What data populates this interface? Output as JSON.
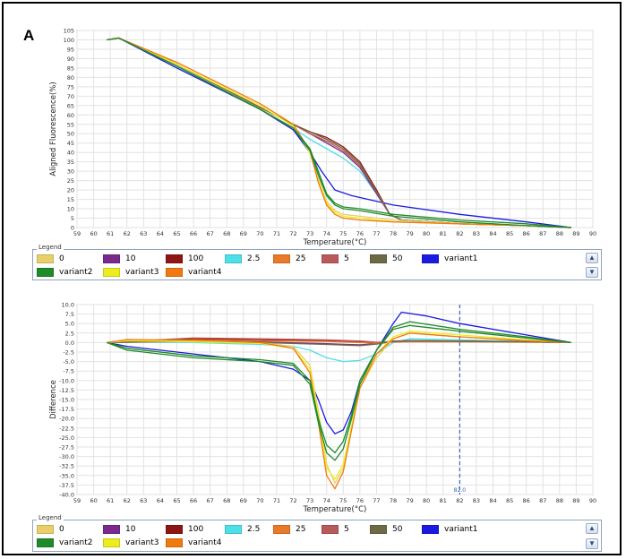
{
  "panel_label": "A",
  "legend_title": "Legend",
  "legend_items": [
    {
      "label": "0",
      "color": "#e8cf6a"
    },
    {
      "label": "10",
      "color": "#7a2a8c"
    },
    {
      "label": "100",
      "color": "#8e1515"
    },
    {
      "label": "2.5",
      "color": "#4ee0e8"
    },
    {
      "label": "25",
      "color": "#e87a2a"
    },
    {
      "label": "5",
      "color": "#b85a5a"
    },
    {
      "label": "50",
      "color": "#6e6a46"
    },
    {
      "label": "variant1",
      "color": "#1a1ae0"
    },
    {
      "label": "variant2",
      "color": "#1f8a2a"
    },
    {
      "label": "variant3",
      "color": "#ecec1e"
    },
    {
      "label": "variant4",
      "color": "#f07a10"
    }
  ],
  "chart_data": [
    {
      "type": "line",
      "title": "",
      "xlabel": "Temperature(°C)",
      "ylabel": "Aligned Fluorescence(%)",
      "xlim": [
        59,
        90
      ],
      "ylim": [
        0,
        105
      ],
      "x_ticks": [
        "59",
        "60",
        "61",
        "62",
        "63",
        "64",
        "65",
        "66",
        "67",
        "68",
        "69",
        "70",
        "71",
        "72",
        "73",
        "74",
        "75",
        "76",
        "77",
        "78",
        "79",
        "80",
        "81",
        "82",
        "83",
        "84",
        "85",
        "86",
        "87",
        "88",
        "89",
        "90"
      ],
      "y_ticks": [
        "0",
        "5",
        "10",
        "15",
        "20",
        "25",
        "30",
        "35",
        "40",
        "45",
        "50",
        "55",
        "60",
        "65",
        "70",
        "75",
        "80",
        "85",
        "90",
        "95",
        "100",
        "105"
      ],
      "grid": true,
      "legend": "below",
      "series": [
        {
          "group": "0",
          "x": [
            60.8,
            61.5,
            65,
            70,
            72,
            73,
            73.5,
            74,
            74.5,
            75,
            76,
            78,
            82,
            86,
            88.7
          ],
          "y": [
            100,
            101,
            87,
            65,
            54,
            40,
            26,
            14,
            9,
            7,
            6,
            4,
            2,
            1,
            0
          ]
        },
        {
          "group": "10",
          "x": [
            60.8,
            61.5,
            65,
            70,
            72,
            73,
            74,
            75,
            76,
            77,
            77.8,
            78.5,
            82,
            86,
            88.7
          ],
          "y": [
            100,
            101,
            87,
            64,
            55,
            50,
            45,
            40,
            32,
            18,
            7,
            4,
            2,
            1,
            0
          ]
        },
        {
          "group": "100",
          "x": [
            60.8,
            61.5,
            65,
            70,
            72,
            73,
            74,
            75,
            76,
            77,
            77.8,
            78.5,
            82,
            86,
            88.7
          ],
          "y": [
            100,
            101,
            87,
            64,
            55,
            51,
            48,
            43,
            35,
            20,
            7,
            4,
            2,
            1,
            0
          ]
        },
        {
          "group": "2.5",
          "x": [
            60.8,
            61.5,
            65,
            70,
            72,
            73,
            74,
            75,
            76,
            77,
            77.8,
            78.5,
            82,
            86,
            88.7
          ],
          "y": [
            100,
            101,
            86,
            63,
            53,
            47,
            42,
            37,
            30,
            18,
            7,
            4,
            2,
            1,
            0
          ]
        },
        {
          "group": "25",
          "x": [
            60.8,
            61.5,
            65,
            70,
            72,
            73,
            74,
            75,
            76,
            77,
            77.8,
            78.5,
            82,
            86,
            88.7
          ],
          "y": [
            100,
            101,
            87,
            64,
            55,
            51,
            47,
            42,
            34,
            19,
            7,
            4,
            2,
            1,
            0
          ]
        },
        {
          "group": "5",
          "x": [
            60.8,
            61.5,
            65,
            70,
            72,
            73,
            74,
            75,
            76,
            77,
            77.8,
            78.5,
            82,
            86,
            88.7
          ],
          "y": [
            100,
            101,
            87,
            64,
            55,
            50,
            46,
            41,
            33,
            19,
            7,
            4,
            2,
            1,
            0
          ]
        },
        {
          "group": "50",
          "x": [
            60.8,
            61.5,
            65,
            70,
            72,
            73,
            74,
            75,
            76,
            77,
            77.8,
            78.5,
            82,
            86,
            88.7
          ],
          "y": [
            100,
            101,
            87,
            64,
            55,
            51,
            47,
            42,
            34,
            19,
            7,
            4,
            2,
            1,
            0
          ]
        },
        {
          "group": "variant1",
          "x": [
            60.8,
            61.5,
            65,
            70,
            72,
            73,
            73.7,
            74.5,
            75.5,
            78,
            82,
            86,
            88.7
          ],
          "y": [
            100,
            101,
            85,
            63,
            52,
            40,
            30,
            20,
            17,
            12,
            7,
            3,
            0
          ]
        },
        {
          "group": "variant2",
          "x": [
            60.8,
            61.5,
            65,
            70,
            72,
            73,
            73.5,
            74,
            74.5,
            75,
            76,
            78,
            82,
            86,
            88.7
          ],
          "y": [
            100,
            101,
            86,
            63,
            53,
            42,
            30,
            18,
            13,
            11,
            10,
            7,
            4,
            2,
            0
          ]
        },
        {
          "group": "variant2",
          "x": [
            60.8,
            61.5,
            65,
            70,
            72,
            73,
            73.5,
            74,
            74.5,
            75,
            76,
            78,
            82,
            86,
            88.7
          ],
          "y": [
            100,
            101,
            86,
            63,
            53,
            41,
            28,
            17,
            12,
            10,
            9,
            6,
            3,
            1,
            0
          ]
        },
        {
          "group": "variant3",
          "x": [
            60.8,
            61.5,
            65,
            70,
            72,
            73,
            73.5,
            74,
            74.5,
            75,
            76,
            78,
            82,
            86,
            88.7
          ],
          "y": [
            100,
            101,
            87,
            65,
            54,
            40,
            25,
            13,
            8,
            6,
            5,
            3,
            2,
            1,
            0
          ]
        },
        {
          "group": "variant4",
          "x": [
            60.8,
            61.5,
            65,
            70,
            72,
            73,
            73.5,
            74,
            74.5,
            75,
            76,
            78,
            82,
            86,
            88.7
          ],
          "y": [
            100,
            101,
            88,
            66,
            55,
            41,
            24,
            12,
            7,
            5,
            4,
            3,
            2,
            1,
            0
          ]
        }
      ]
    },
    {
      "type": "line",
      "title": "",
      "xlabel": "Temperature(°C)",
      "ylabel": "Difference",
      "xlim": [
        59,
        90
      ],
      "ylim": [
        -40,
        10
      ],
      "x_ticks": [
        "59",
        "60",
        "61",
        "62",
        "63",
        "64",
        "65",
        "66",
        "67",
        "68",
        "69",
        "70",
        "71",
        "72",
        "73",
        "74",
        "75",
        "76",
        "77",
        "78",
        "79",
        "80",
        "81",
        "82",
        "83",
        "84",
        "85",
        "86",
        "87",
        "88",
        "89",
        "90"
      ],
      "y_ticks": [
        "10.0",
        "7.5",
        "5.0",
        "2.5",
        "0.0",
        "-2.5",
        "-5.0",
        "-7.5",
        "-10.0",
        "-12.5",
        "-15.0",
        "-17.5",
        "-20.0",
        "-22.5",
        "-25.0",
        "-27.5",
        "-30.0",
        "-32.5",
        "-35.0",
        "-37.5",
        "-40.0"
      ],
      "grid": true,
      "legend": "below",
      "marker_x": 82.0,
      "marker_label": "82.0",
      "series": [
        {
          "group": "0",
          "x": [
            60.8,
            62,
            66,
            70,
            72,
            73,
            73.5,
            74,
            74.5,
            75,
            75.5,
            76,
            77,
            78,
            79,
            82,
            86,
            88.7
          ],
          "y": [
            0,
            0.5,
            0.5,
            0,
            -1,
            -6,
            -18,
            -32,
            -37,
            -33,
            -22,
            -12,
            -4,
            1,
            2.5,
            1.5,
            0.5,
            0
          ]
        },
        {
          "group": "10",
          "x": [
            60.8,
            66,
            70,
            74,
            76,
            77,
            78,
            79,
            82,
            86,
            88.7
          ],
          "y": [
            0,
            0.5,
            0.2,
            -0.3,
            -0.6,
            -0.3,
            0.4,
            0.5,
            0.4,
            0.2,
            0
          ]
        },
        {
          "group": "100",
          "x": [
            60.8,
            66,
            70,
            74,
            76,
            77,
            78,
            79,
            82,
            86,
            88.7
          ],
          "y": [
            0,
            1,
            0.7,
            0.5,
            0.2,
            0,
            0.2,
            0.3,
            0.3,
            0.2,
            0
          ]
        },
        {
          "group": "2.5",
          "x": [
            60.8,
            62,
            66,
            70,
            72,
            73,
            74,
            75,
            76,
            77,
            78,
            79,
            82,
            86,
            88.7
          ],
          "y": [
            0,
            0.2,
            0,
            -0.5,
            -1,
            -2,
            -4,
            -5,
            -4.7,
            -3,
            0,
            1,
            0.7,
            0.3,
            0
          ]
        },
        {
          "group": "25",
          "x": [
            60.8,
            66,
            70,
            74,
            76,
            77,
            78,
            79,
            82,
            86,
            88.7
          ],
          "y": [
            0,
            0.7,
            0.5,
            0.3,
            0,
            -0.2,
            0.1,
            0.2,
            0.2,
            0.1,
            0
          ]
        },
        {
          "group": "5",
          "x": [
            60.8,
            66,
            70,
            74,
            76,
            77,
            78,
            79,
            82,
            86,
            88.7
          ],
          "y": [
            0,
            1.2,
            1,
            0.7,
            0.4,
            0.1,
            0.3,
            0.4,
            0.3,
            0.2,
            0
          ]
        },
        {
          "group": "50",
          "x": [
            60.8,
            66,
            70,
            74,
            76,
            77,
            78,
            79,
            82,
            86,
            88.7
          ],
          "y": [
            0,
            0.3,
            0,
            -0.5,
            -0.8,
            -0.4,
            0.3,
            0.5,
            0.4,
            0.2,
            0
          ]
        },
        {
          "group": "variant1",
          "x": [
            60.8,
            62,
            66,
            70,
            72,
            73,
            73.5,
            74,
            74.5,
            75,
            75.5,
            76,
            77,
            78,
            78.5,
            80,
            82,
            86,
            88.7
          ],
          "y": [
            0,
            -1,
            -3,
            -5,
            -7,
            -10,
            -15,
            -21,
            -24,
            -23,
            -18,
            -10,
            -2,
            5,
            8,
            7,
            5,
            2,
            0
          ]
        },
        {
          "group": "variant2",
          "x": [
            60.8,
            62,
            66,
            70,
            72,
            73,
            73.5,
            74,
            74.5,
            75,
            75.5,
            76,
            77,
            78,
            79,
            82,
            86,
            88.7
          ],
          "y": [
            0,
            -2,
            -4,
            -5,
            -6,
            -11,
            -21,
            -29,
            -31,
            -28,
            -20,
            -11,
            -2,
            4,
            5.5,
            3.5,
            1.5,
            0
          ]
        },
        {
          "group": "variant2",
          "x": [
            60.8,
            62,
            66,
            70,
            72,
            73,
            73.5,
            74,
            74.5,
            75,
            75.5,
            76,
            77,
            78,
            79,
            82,
            86,
            88.7
          ],
          "y": [
            0,
            -1.5,
            -3.5,
            -4.5,
            -5.5,
            -10,
            -20,
            -27,
            -29,
            -26,
            -19,
            -10,
            -2,
            3.5,
            4.5,
            3,
            1.2,
            0
          ]
        },
        {
          "group": "variant3",
          "x": [
            60.8,
            62,
            66,
            70,
            72,
            73,
            73.5,
            74,
            74.5,
            75,
            75.5,
            76,
            77,
            78,
            79,
            82,
            86,
            88.7
          ],
          "y": [
            0,
            0.5,
            0.2,
            -0.2,
            -1.5,
            -7,
            -19,
            -33,
            -36,
            -32,
            -22,
            -11,
            -3,
            1.5,
            3,
            2,
            0.7,
            0
          ]
        },
        {
          "group": "variant4",
          "x": [
            60.8,
            62,
            66,
            70,
            72,
            73,
            73.5,
            74,
            74.5,
            75,
            75.5,
            76,
            77,
            78,
            79,
            82,
            86,
            88.7
          ],
          "y": [
            0,
            0.8,
            0.6,
            0,
            -1.5,
            -8,
            -21,
            -35,
            -38.5,
            -34,
            -23,
            -12,
            -3,
            1,
            2.5,
            1.5,
            0.5,
            0
          ]
        }
      ]
    }
  ]
}
